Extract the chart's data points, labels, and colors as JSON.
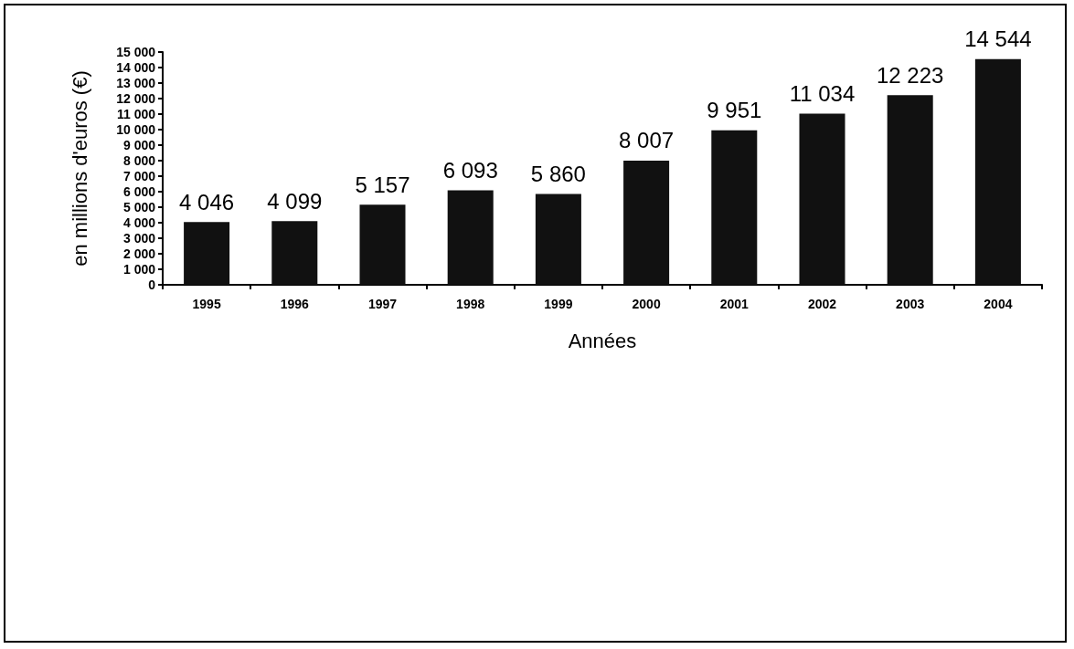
{
  "chart_data": {
    "type": "bar",
    "xlabel": "Années",
    "ylabel": "en millions d'euros (€)",
    "categories": [
      "1995",
      "1996",
      "1997",
      "1998",
      "1999",
      "2000",
      "2001",
      "2002",
      "2003",
      "2004"
    ],
    "values": [
      4046,
      4099,
      5157,
      6093,
      5860,
      8007,
      9951,
      11034,
      12223,
      14544
    ],
    "color": "#111111",
    "value_labels": [
      "4 046",
      "4 099",
      "5 157",
      "6 093",
      "5 860",
      "8 007",
      "9 951",
      "11 034",
      "12 223",
      "14 544"
    ],
    "ylim": [
      0,
      15000
    ],
    "yticks": [
      0,
      {
        "value": 1000,
        "label": "1 000"
      },
      {
        "value": 2000,
        "label": "2 000"
      },
      {
        "value": 3000,
        "label": "3 000"
      },
      {
        "value": 4000,
        "label": "4 000"
      },
      {
        "value": 5000,
        "label": "5 000"
      },
      {
        "value": 6000,
        "label": "6 000"
      },
      {
        "value": 7000,
        "label": "7 000"
      },
      {
        "value": 8000,
        "label": "8 000"
      },
      {
        "value": 9000,
        "label": "9 000"
      },
      {
        "value": 10000,
        "label": "10 000"
      },
      {
        "value": 11000,
        "label": "11 000"
      },
      {
        "value": 12000,
        "label": "12 000"
      },
      {
        "value": 13000,
        "label": "13 000"
      },
      {
        "value": 14000,
        "label": "14 000"
      },
      {
        "value": 15000,
        "label": "15 000"
      }
    ],
    "grid": false
  }
}
